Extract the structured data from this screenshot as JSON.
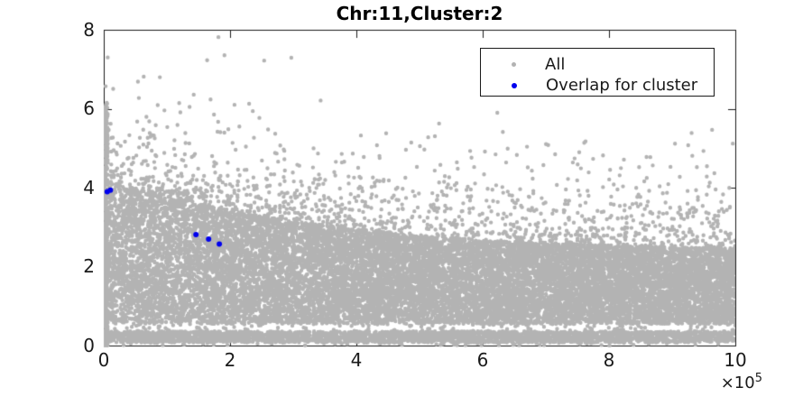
{
  "chart_data": {
    "type": "scatter",
    "title": "Chr:11,Cluster:2",
    "background_color": "#ffffff",
    "axis_color": "#1a1a1a",
    "grid": false,
    "x_axis": {
      "range": [
        0,
        1000000
      ],
      "tick_values": [
        0,
        2,
        4,
        6,
        8,
        10
      ],
      "tick_unit": 100000,
      "multiplier_base": "×10",
      "multiplier_exponent": "5"
    },
    "y_axis": {
      "range": [
        0,
        8
      ],
      "tick_values": [
        0,
        2,
        4,
        6,
        8
      ]
    },
    "legend": {
      "position": "top-right",
      "entries": [
        {
          "label": "All",
          "color": "#b3b3b3"
        },
        {
          "label": "Overlap for cluster",
          "color": "#0000ee"
        }
      ]
    },
    "series": [
      {
        "name": "All",
        "color": "#b3b3b3",
        "marker": "dot",
        "marker_radius_px": 2.2,
        "generator": {
          "seed": 20111,
          "envelope": {
            "base": 2.35,
            "amp": 1.9,
            "tau": 0.35
          },
          "components": [
            {
              "kind": "band_to_envelope",
              "n": 16000,
              "x_range": [
                0,
                1000000
              ],
              "y_low": 0.55
            },
            {
              "kind": "halo_above_envelope",
              "n": 1100,
              "x_range": [
                0,
                1000000
              ],
              "exp_mean": 0.6
            },
            {
              "kind": "outliers_above_envelope",
              "n": 110,
              "x_range": [
                0,
                1000000
              ],
              "offset": 1.0,
              "exp_mean": 0.7,
              "y_max": 7.3
            },
            {
              "kind": "uniform_band",
              "n": 2800,
              "x_range": [
                0,
                1000000
              ],
              "y_range": [
                0.08,
                0.36
              ]
            },
            {
              "kind": "uniform_band",
              "n": 130,
              "x_range": [
                0,
                1000000
              ],
              "y_range": [
                0.36,
                0.55
              ]
            },
            {
              "kind": "uniform_band",
              "n": 70,
              "x_range": [
                0,
                1000000
              ],
              "y_range": [
                0.0,
                0.08
              ]
            },
            {
              "kind": "left_spike",
              "n": 600,
              "x_range": [
                500,
                6500
              ],
              "y_max": 6.15,
              "pow": 1.35
            }
          ],
          "explicit_points": [
            [
              254000,
              7.22
            ],
            [
              297000,
              7.29
            ],
            [
              236000,
              5.94
            ]
          ]
        }
      },
      {
        "name": "Overlap for cluster",
        "color": "#0000ee",
        "marker": "dot",
        "marker_radius_px": 3,
        "points": [
          [
            5500,
            3.9
          ],
          [
            10500,
            3.94
          ],
          [
            146000,
            2.81
          ],
          [
            166000,
            2.7
          ],
          [
            183000,
            2.57
          ]
        ]
      }
    ]
  }
}
